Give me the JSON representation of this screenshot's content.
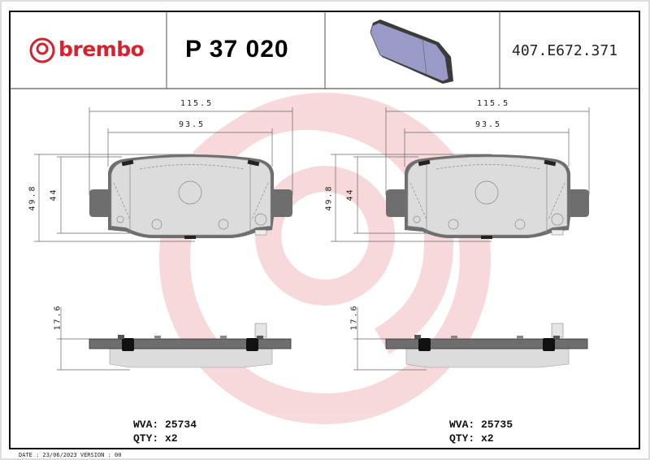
{
  "header": {
    "brand": "brembo",
    "part_number": "P 37 020",
    "reference": "407.E672.371"
  },
  "drawings": [
    {
      "width_overall": "115.5",
      "width_inner": "93.5",
      "height_overall": "49.8",
      "height_inner": "44",
      "thickness": "17.6",
      "wva_label": "WVA: 25734",
      "qty_label": "QTY: x2"
    },
    {
      "width_overall": "115.5",
      "width_inner": "93.5",
      "height_overall": "49.8",
      "height_inner": "44",
      "thickness": "17.6",
      "wva_label": "WVA: 25735",
      "qty_label": "QTY: x2"
    }
  ],
  "footer": {
    "text": "DATE : 23/06/2023 VERSION : 00"
  },
  "colors": {
    "brand": "#d4232f",
    "watermark": "#f6d3d6",
    "backing_plate": "#6e6e6e",
    "friction": "#dcdcdc",
    "pad_render": "#9a9ac8"
  }
}
